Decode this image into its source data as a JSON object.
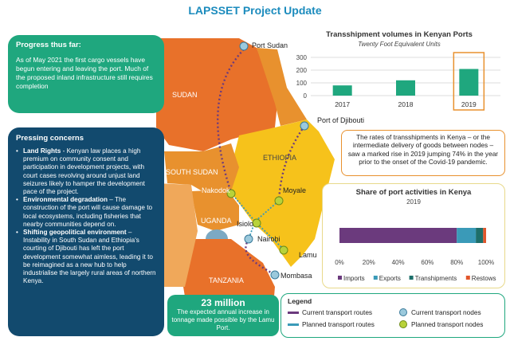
{
  "page": {
    "title": "LAPSSET Project Update"
  },
  "colors": {
    "green": "#1fa77e",
    "navy": "#124a6e",
    "orange": "#e8912e",
    "yellow": "#f6c21b",
    "teal": "#1b8bbd",
    "imports": "#6b3a7d",
    "exports": "#3a9ab8",
    "transhipments": "#1d6f6a",
    "restows": "#e2562b"
  },
  "progress": {
    "heading": "Progress thus far:",
    "text": "As of  May 2021 the first cargo vessels have begun entering and leaving the port. Much of the proposed inland infrastructure still requires completion"
  },
  "concerns": {
    "heading": "Pressing concerns",
    "items": [
      {
        "title": "Land Rights",
        "sep": " - ",
        "text": "Kenyan law places a high premium on community consent and participation in development projects, with court cases revolving around unjust land seizures likely to hamper the development pace of the project."
      },
      {
        "title": "Environmental degradation",
        "sep": " – ",
        "text": "The construction of the port will cause damage to local ecosystems, including fisheries that nearby communities depend on."
      },
      {
        "title": "Shifting geopolitical environment",
        "sep": " – ",
        "text": "Instability in South Sudan and Ethiopia's courting of Djibouti has left the port development somewhat aimless, leading it to be reimagined as a new hub to help industrialise the largely rural areas of northern Kenya."
      }
    ]
  },
  "stat": {
    "value": "23 million",
    "text": "The expected annual increase in tonnage made possible by the Lamu Port."
  },
  "map": {
    "countries": {
      "sudan": "SUDAN",
      "south_sudan": "SOUTH SUDAN",
      "ethiopia": "ETHIOPIA",
      "uganda": "UGANDA",
      "tanzania": "TANZANIA"
    },
    "cities": {
      "port_sudan": "Port Sudan",
      "djibouti": "Port of Djibouti",
      "nakodok": "Nakodok",
      "moyale": "Moyale",
      "isiolo": "Isiolo",
      "nairobi": "Nairobi",
      "lamu": "Lamu",
      "mombasa": "Mombasa"
    }
  },
  "callout": {
    "text": "The rates of transshipments in Kenya – or the intermediate delivery of goods between nodes – saw a marked rise in 2019 jumping 74% in the year prior to the onset of the Covid-19 pandemic."
  },
  "chart_data": [
    {
      "type": "bar",
      "title": "Transshipment volumes in Kenyan Ports",
      "subtitle": "Twenty Foot Equivalent Units",
      "categories": [
        "2017",
        "2018",
        "2019"
      ],
      "values": [
        80,
        120,
        209
      ],
      "ylim": [
        0,
        300
      ],
      "yticks": [
        0,
        100,
        200,
        300
      ],
      "highlight": "2019"
    },
    {
      "type": "bar",
      "orientation": "horizontal-stacked",
      "title": "Share of port activities in Kenya",
      "subtitle": "2019",
      "series": [
        {
          "name": "Imports",
          "value": 80
        },
        {
          "name": "Exports",
          "value": 13
        },
        {
          "name": "Transhipments",
          "value": 5
        },
        {
          "name": "Restows",
          "value": 2
        }
      ],
      "xlim": [
        0,
        100
      ],
      "xticks": [
        "0%",
        "20%",
        "40%",
        "60%",
        "80%",
        "100%"
      ]
    }
  ],
  "legend": {
    "title": "Legend",
    "items": {
      "current_routes": "Current transport routes",
      "planned_routes": "Planned transport routes",
      "current_nodes": "Current transport nodes",
      "planned_nodes": "Planned transport nodes"
    }
  }
}
